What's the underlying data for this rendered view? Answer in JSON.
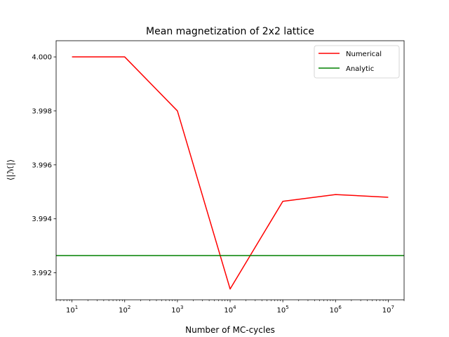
{
  "chart_data": {
    "type": "line",
    "title": "Mean magnetization of 2x2 lattice",
    "xlabel": "Number of MC-cycles",
    "ylabel": "⟨|ℳ|⟩",
    "xscale": "log",
    "xlim": [
      5,
      20000000
    ],
    "ylim": [
      3.991,
      4.0006
    ],
    "x_ticks": [
      {
        "value": 10,
        "base": "10",
        "exp": "1"
      },
      {
        "value": 100,
        "base": "10",
        "exp": "2"
      },
      {
        "value": 1000,
        "base": "10",
        "exp": "3"
      },
      {
        "value": 10000,
        "base": "10",
        "exp": "4"
      },
      {
        "value": 100000,
        "base": "10",
        "exp": "5"
      },
      {
        "value": 1000000,
        "base": "10",
        "exp": "6"
      },
      {
        "value": 10000000,
        "base": "10",
        "exp": "7"
      }
    ],
    "y_ticks": [
      3.992,
      3.994,
      3.996,
      3.998,
      4.0
    ],
    "y_tick_labels": [
      "3.992",
      "3.994",
      "3.996",
      "3.998",
      "4.000"
    ],
    "grid": false,
    "legend_position": "top-right",
    "series": [
      {
        "name": "Numerical",
        "color": "#ff0000",
        "x": [
          10,
          100,
          1000,
          10000,
          100000,
          1000000,
          10000000
        ],
        "y": [
          4.0,
          4.0,
          3.998,
          3.9914,
          3.99465,
          3.9949,
          3.9948
        ]
      },
      {
        "name": "Analytic",
        "color": "#008000",
        "type": "hline",
        "y": 3.99264
      }
    ]
  }
}
